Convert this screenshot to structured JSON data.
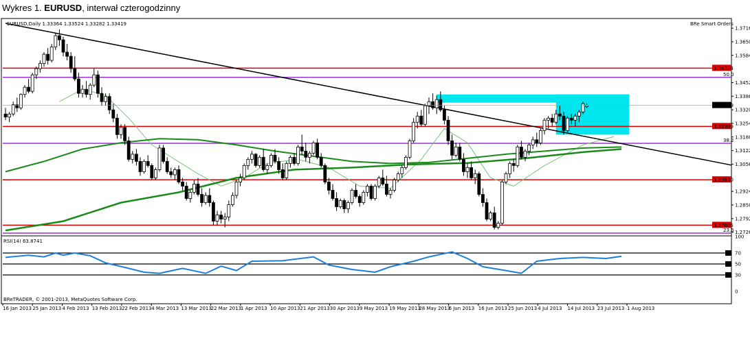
{
  "caption": {
    "prefix": "Wykres 1. ",
    "symbol": "EURUSD",
    "suffix": ", interwał czterogodzinny"
  },
  "header": {
    "symbol_info": "EURUSD,Daily  1.33364 1.33524 1.33282 1.33419",
    "plugin": "BRe Smart Orders"
  },
  "footer": {
    "copyright": "BReTRADER, © 2001-2013, MetaQuotes Software Corp."
  },
  "colors": {
    "bull": "#ffffff",
    "bear": "#000000",
    "resistance": "#e00000",
    "fib": "#9933cc",
    "trend": "#000000",
    "ma_slow": "#1a8a1a",
    "ma_fast": "#7ac47a",
    "box": "#00e5ee",
    "rsi": "#1e7fe0"
  },
  "chart_data": {
    "type": "candlestick",
    "symbol": "EURUSD",
    "timeframe": "Daily",
    "ohlc_header": {
      "open": 1.33364,
      "high": 1.33524,
      "low": 1.33282,
      "close": 1.33419
    },
    "y_ticks": [
      "1.37165",
      "1.36505",
      "1.35845",
      "1.34525",
      "1.33865",
      "1.33205",
      "1.32545",
      "1.31885",
      "1.31225",
      "1.30565",
      "1.29245",
      "1.28585",
      "1.27925",
      "1.27265"
    ],
    "ylim": [
      1.2712,
      1.376
    ],
    "x_labels": [
      "16 Jan 2013",
      "25 Jan 2013",
      "4 Feb 2013",
      "13 Feb 2013",
      "22 Feb 2013",
      "4 Mar 2013",
      "13 Mar 2013",
      "22 Mar 2013",
      "1 Apr 2013",
      "10 Apr 2013",
      "21 Apr 2013",
      "30 Apr 2013",
      "9 May 2013",
      "19 May 2013",
      "28 May 2013",
      "6 Jun 2013",
      "16 Jun 2013",
      "25 Jun 2013",
      "4 Jul 2013",
      "14 Jul 2013",
      "23 Jul 2013",
      "1 Aug 2013"
    ],
    "current_price": "1.33419",
    "horizontal_levels": [
      {
        "label": "1.35224",
        "value": 1.35224,
        "kind": "resistance"
      },
      {
        "label": "1.32399",
        "value": 1.32399,
        "kind": "resistance"
      },
      {
        "label": "1.29810",
        "value": 1.2981,
        "kind": "resistance"
      },
      {
        "label": "1.27605",
        "value": 1.27605,
        "kind": "resistance"
      }
    ],
    "fibonacci_levels": [
      {
        "label": "50.0",
        "value": 1.3478
      },
      {
        "label": "38.2",
        "value": 1.3158
      },
      {
        "label": "23.6",
        "value": 1.2722
      }
    ],
    "trendline": {
      "start": {
        "bar": 0,
        "price": 1.374
      },
      "end": {
        "bar": 148,
        "price": 1.32
      }
    },
    "highlight_box": [
      {
        "from_bar": 112,
        "to_bar": 162,
        "high": 1.3395,
        "low": 1.3355
      },
      {
        "from_bar": 143,
        "to_bar": 162,
        "high": 1.3395,
        "low": 1.32
      }
    ],
    "candles": [
      [
        1.33,
        1.333,
        1.327,
        1.3285
      ],
      [
        1.3285,
        1.331,
        1.326,
        1.33
      ],
      [
        1.33,
        1.336,
        1.329,
        1.3345
      ],
      [
        1.3345,
        1.338,
        1.331,
        1.333
      ],
      [
        1.333,
        1.34,
        1.332,
        1.3395
      ],
      [
        1.3395,
        1.344,
        1.338,
        1.343
      ],
      [
        1.343,
        1.347,
        1.34,
        1.341
      ],
      [
        1.341,
        1.35,
        1.34,
        1.349
      ],
      [
        1.349,
        1.353,
        1.347,
        1.352
      ],
      [
        1.352,
        1.356,
        1.35,
        1.3545
      ],
      [
        1.3545,
        1.36,
        1.353,
        1.359
      ],
      [
        1.359,
        1.362,
        1.354,
        1.356
      ],
      [
        1.356,
        1.364,
        1.355,
        1.3625
      ],
      [
        1.3625,
        1.369,
        1.361,
        1.368
      ],
      [
        1.368,
        1.371,
        1.363,
        1.366
      ],
      [
        1.366,
        1.3675,
        1.358,
        1.36
      ],
      [
        1.36,
        1.364,
        1.356,
        1.358
      ],
      [
        1.358,
        1.36,
        1.35,
        1.352
      ],
      [
        1.352,
        1.358,
        1.346,
        1.347
      ],
      [
        1.347,
        1.35,
        1.338,
        1.34
      ],
      [
        1.34,
        1.344,
        1.338,
        1.342
      ],
      [
        1.342,
        1.346,
        1.338,
        1.3395
      ],
      [
        1.3395,
        1.345,
        1.337,
        1.344
      ],
      [
        1.344,
        1.352,
        1.343,
        1.349
      ],
      [
        1.349,
        1.351,
        1.338,
        1.34
      ],
      [
        1.34,
        1.343,
        1.334,
        1.336
      ],
      [
        1.336,
        1.34,
        1.334,
        1.3385
      ],
      [
        1.3385,
        1.34,
        1.33,
        1.332
      ],
      [
        1.332,
        1.335,
        1.326,
        1.328
      ],
      [
        1.328,
        1.33,
        1.318,
        1.32
      ],
      [
        1.32,
        1.325,
        1.318,
        1.3235
      ],
      [
        1.3235,
        1.325,
        1.315,
        1.317
      ],
      [
        1.317,
        1.319,
        1.307,
        1.308
      ],
      [
        1.308,
        1.312,
        1.306,
        1.3105
      ],
      [
        1.3105,
        1.313,
        1.305,
        1.307
      ],
      [
        1.307,
        1.309,
        1.3,
        1.302
      ],
      [
        1.302,
        1.308,
        1.301,
        1.307
      ],
      [
        1.307,
        1.31,
        1.304,
        1.305
      ],
      [
        1.305,
        1.306,
        1.298,
        1.299
      ],
      [
        1.299,
        1.304,
        1.298,
        1.303
      ],
      [
        1.303,
        1.315,
        1.302,
        1.3135
      ],
      [
        1.3135,
        1.315,
        1.306,
        1.307
      ],
      [
        1.307,
        1.309,
        1.301,
        1.302
      ],
      [
        1.302,
        1.304,
        1.299,
        1.3005
      ],
      [
        1.3005,
        1.304,
        1.298,
        1.303
      ],
      [
        1.303,
        1.305,
        1.296,
        1.297
      ],
      [
        1.297,
        1.299,
        1.293,
        1.295
      ],
      [
        1.295,
        1.297,
        1.288,
        1.289
      ],
      [
        1.289,
        1.293,
        1.287,
        1.292
      ],
      [
        1.292,
        1.298,
        1.291,
        1.296
      ],
      [
        1.296,
        1.299,
        1.29,
        1.291
      ],
      [
        1.291,
        1.294,
        1.285,
        1.287
      ],
      [
        1.287,
        1.292,
        1.286,
        1.2905
      ],
      [
        1.2905,
        1.294,
        1.285,
        1.287
      ],
      [
        1.287,
        1.288,
        1.276,
        1.278
      ],
      [
        1.278,
        1.283,
        1.276,
        1.281
      ],
      [
        1.281,
        1.283,
        1.277,
        1.279
      ],
      [
        1.279,
        1.282,
        1.275,
        1.28
      ],
      [
        1.28,
        1.288,
        1.278,
        1.286
      ],
      [
        1.286,
        1.292,
        1.285,
        1.2905
      ],
      [
        1.2905,
        1.298,
        1.289,
        1.297
      ],
      [
        1.297,
        1.301,
        1.295,
        1.299
      ],
      [
        1.299,
        1.306,
        1.298,
        1.305
      ],
      [
        1.305,
        1.309,
        1.303,
        1.308
      ],
      [
        1.308,
        1.312,
        1.306,
        1.3105
      ],
      [
        1.3105,
        1.311,
        1.304,
        1.305
      ],
      [
        1.305,
        1.31,
        1.304,
        1.309
      ],
      [
        1.309,
        1.313,
        1.302,
        1.303
      ],
      [
        1.303,
        1.306,
        1.301,
        1.305
      ],
      [
        1.305,
        1.311,
        1.304,
        1.31
      ],
      [
        1.31,
        1.313,
        1.306,
        1.307
      ],
      [
        1.307,
        1.309,
        1.301,
        1.303
      ],
      [
        1.303,
        1.306,
        1.298,
        1.299
      ],
      [
        1.299,
        1.307,
        1.298,
        1.306
      ],
      [
        1.306,
        1.31,
        1.304,
        1.309
      ],
      [
        1.309,
        1.311,
        1.305,
        1.306
      ],
      [
        1.306,
        1.315,
        1.305,
        1.314
      ],
      [
        1.314,
        1.32,
        1.31,
        1.312
      ],
      [
        1.312,
        1.316,
        1.307,
        1.309
      ],
      [
        1.309,
        1.312,
        1.306,
        1.311
      ],
      [
        1.311,
        1.317,
        1.31,
        1.316
      ],
      [
        1.316,
        1.318,
        1.308,
        1.309
      ],
      [
        1.309,
        1.311,
        1.304,
        1.305
      ],
      [
        1.305,
        1.306,
        1.296,
        1.297
      ],
      [
        1.297,
        1.299,
        1.291,
        1.293
      ],
      [
        1.293,
        1.296,
        1.288,
        1.289
      ],
      [
        1.289,
        1.292,
        1.283,
        1.285
      ],
      [
        1.285,
        1.289,
        1.284,
        1.288
      ],
      [
        1.288,
        1.289,
        1.282,
        1.284
      ],
      [
        1.284,
        1.288,
        1.282,
        1.287
      ],
      [
        1.287,
        1.294,
        1.286,
        1.293
      ],
      [
        1.293,
        1.296,
        1.289,
        1.29
      ],
      [
        1.29,
        1.291,
        1.285,
        1.287
      ],
      [
        1.287,
        1.293,
        1.286,
        1.292
      ],
      [
        1.292,
        1.296,
        1.29,
        1.295
      ],
      [
        1.295,
        1.296,
        1.288,
        1.289
      ],
      [
        1.289,
        1.296,
        1.288,
        1.295
      ],
      [
        1.295,
        1.3,
        1.294,
        1.299
      ],
      [
        1.299,
        1.303,
        1.295,
        1.296
      ],
      [
        1.296,
        1.3,
        1.29,
        1.291
      ],
      [
        1.291,
        1.294,
        1.289,
        1.293
      ],
      [
        1.293,
        1.299,
        1.292,
        1.298
      ],
      [
        1.298,
        1.302,
        1.297,
        1.301
      ],
      [
        1.301,
        1.305,
        1.299,
        1.304
      ],
      [
        1.304,
        1.31,
        1.303,
        1.309
      ],
      [
        1.309,
        1.318,
        1.308,
        1.317
      ],
      [
        1.317,
        1.328,
        1.316,
        1.326
      ],
      [
        1.326,
        1.331,
        1.323,
        1.329
      ],
      [
        1.329,
        1.332,
        1.324,
        1.325
      ],
      [
        1.325,
        1.335,
        1.324,
        1.334
      ],
      [
        1.334,
        1.338,
        1.33,
        1.336
      ],
      [
        1.336,
        1.34,
        1.332,
        1.333
      ],
      [
        1.333,
        1.339,
        1.33,
        1.337
      ],
      [
        1.337,
        1.341,
        1.331,
        1.332
      ],
      [
        1.332,
        1.334,
        1.325,
        1.327
      ],
      [
        1.327,
        1.329,
        1.315,
        1.317
      ],
      [
        1.317,
        1.32,
        1.308,
        1.31
      ],
      [
        1.31,
        1.316,
        1.309,
        1.314
      ],
      [
        1.314,
        1.316,
        1.307,
        1.308
      ],
      [
        1.308,
        1.311,
        1.3,
        1.302
      ],
      [
        1.302,
        1.306,
        1.299,
        1.304
      ],
      [
        1.304,
        1.307,
        1.298,
        1.299
      ],
      [
        1.299,
        1.303,
        1.296,
        1.301
      ],
      [
        1.301,
        1.302,
        1.29,
        1.291
      ],
      [
        1.291,
        1.294,
        1.285,
        1.287
      ],
      [
        1.287,
        1.289,
        1.278,
        1.279
      ],
      [
        1.279,
        1.283,
        1.278,
        1.282
      ],
      [
        1.282,
        1.285,
        1.274,
        1.275
      ],
      [
        1.275,
        1.278,
        1.274,
        1.277
      ],
      [
        1.277,
        1.298,
        1.276,
        1.297
      ],
      [
        1.297,
        1.302,
        1.296,
        1.301
      ],
      [
        1.301,
        1.307,
        1.299,
        1.306
      ],
      [
        1.306,
        1.308,
        1.302,
        1.305
      ],
      [
        1.305,
        1.315,
        1.304,
        1.314
      ],
      [
        1.314,
        1.317,
        1.308,
        1.309
      ],
      [
        1.309,
        1.313,
        1.307,
        1.312
      ],
      [
        1.312,
        1.316,
        1.31,
        1.315
      ],
      [
        1.315,
        1.319,
        1.313,
        1.3175
      ],
      [
        1.3175,
        1.321,
        1.314,
        1.316
      ],
      [
        1.316,
        1.323,
        1.315,
        1.322
      ],
      [
        1.322,
        1.328,
        1.32,
        1.327
      ],
      [
        1.327,
        1.329,
        1.323,
        1.328
      ],
      [
        1.328,
        1.33,
        1.324,
        1.326
      ],
      [
        1.326,
        1.332,
        1.325,
        1.33
      ],
      [
        1.33,
        1.334,
        1.327,
        1.329
      ],
      [
        1.329,
        1.331,
        1.32,
        1.322
      ],
      [
        1.322,
        1.329,
        1.321,
        1.328
      ],
      [
        1.328,
        1.33,
        1.325,
        1.327
      ],
      [
        1.327,
        1.33,
        1.324,
        1.329
      ],
      [
        1.329,
        1.332,
        1.326,
        1.331
      ],
      [
        1.331,
        1.336,
        1.33,
        1.335
      ],
      [
        1.3336,
        1.3352,
        1.3328,
        1.3342
      ]
    ],
    "ma_slow": [
      [
        0,
        1.2735
      ],
      [
        15,
        1.278
      ],
      [
        30,
        1.287
      ],
      [
        45,
        1.292
      ],
      [
        60,
        1.299
      ],
      [
        75,
        1.303
      ],
      [
        90,
        1.304
      ],
      [
        105,
        1.3055
      ],
      [
        120,
        1.3062
      ],
      [
        135,
        1.3085
      ],
      [
        150,
        1.3115
      ],
      [
        160,
        1.313
      ]
    ],
    "ma_slow_long": [
      [
        0,
        1.302
      ],
      [
        10,
        1.307
      ],
      [
        20,
        1.313
      ],
      [
        30,
        1.316
      ],
      [
        40,
        1.318
      ],
      [
        50,
        1.3175
      ],
      [
        60,
        1.315
      ],
      [
        70,
        1.312
      ],
      [
        80,
        1.3095
      ],
      [
        90,
        1.307
      ],
      [
        100,
        1.306
      ],
      [
        110,
        1.3065
      ],
      [
        120,
        1.3085
      ],
      [
        130,
        1.3105
      ],
      [
        140,
        1.312
      ],
      [
        150,
        1.3135
      ],
      [
        160,
        1.314
      ]
    ],
    "ma_fast": [
      [
        14,
        1.336
      ],
      [
        20,
        1.342
      ],
      [
        26,
        1.339
      ],
      [
        32,
        1.328
      ],
      [
        38,
        1.315
      ],
      [
        44,
        1.308
      ],
      [
        50,
        1.301
      ],
      [
        56,
        1.295
      ],
      [
        62,
        1.299
      ],
      [
        68,
        1.306
      ],
      [
        76,
        1.308
      ],
      [
        84,
        1.304
      ],
      [
        92,
        1.295
      ],
      [
        100,
        1.294
      ],
      [
        108,
        1.308
      ],
      [
        114,
        1.323
      ],
      [
        120,
        1.316
      ],
      [
        126,
        1.299
      ],
      [
        132,
        1.295
      ],
      [
        140,
        1.305
      ],
      [
        150,
        1.315
      ],
      [
        158,
        1.319
      ]
    ],
    "rsi": {
      "label": "RSI(14) 63.8741",
      "scale": [
        "100",
        "70",
        "50",
        "30",
        "0"
      ],
      "levels": [
        70,
        50,
        30
      ],
      "values": [
        [
          0,
          62
        ],
        [
          6,
          66
        ],
        [
          10,
          63
        ],
        [
          13,
          70
        ],
        [
          15,
          66
        ],
        [
          18,
          70
        ],
        [
          22,
          65
        ],
        [
          26,
          52
        ],
        [
          32,
          42
        ],
        [
          36,
          35
        ],
        [
          40,
          33
        ],
        [
          46,
          42
        ],
        [
          52,
          33
        ],
        [
          56,
          46
        ],
        [
          60,
          38
        ],
        [
          64,
          55
        ],
        [
          72,
          56
        ],
        [
          80,
          63
        ],
        [
          84,
          48
        ],
        [
          90,
          40
        ],
        [
          96,
          35
        ],
        [
          100,
          45
        ],
        [
          106,
          55
        ],
        [
          110,
          63
        ],
        [
          116,
          72
        ],
        [
          120,
          60
        ],
        [
          124,
          45
        ],
        [
          130,
          38
        ],
        [
          134,
          33
        ],
        [
          138,
          55
        ],
        [
          144,
          60
        ],
        [
          150,
          62
        ],
        [
          156,
          60
        ],
        [
          160,
          64
        ]
      ]
    }
  }
}
